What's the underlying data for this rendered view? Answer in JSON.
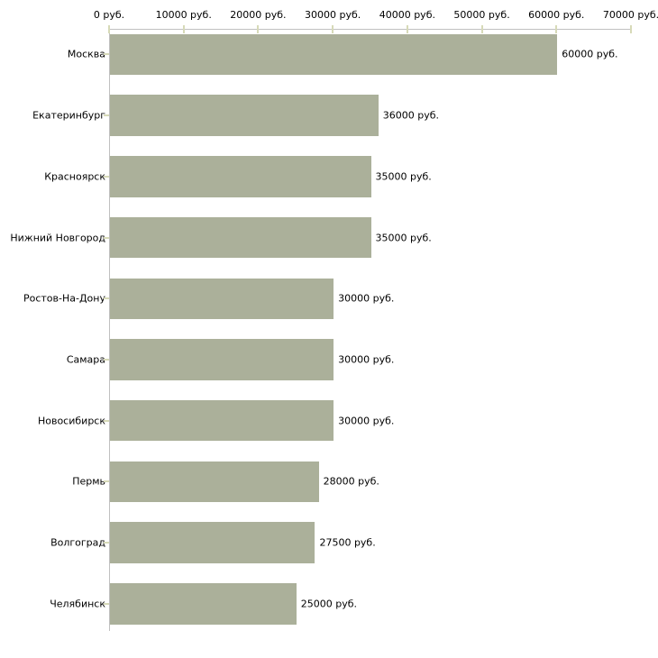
{
  "chart_data": {
    "type": "bar",
    "orientation": "horizontal",
    "title": "",
    "xlabel": "",
    "ylabel": "",
    "unit": "руб.",
    "grid": false,
    "legend": false,
    "xlim": [
      0,
      70000
    ],
    "x_ticks": [
      0,
      10000,
      20000,
      30000,
      40000,
      50000,
      60000,
      70000
    ],
    "x_tick_labels": [
      "0 руб.",
      "10000 руб.",
      "20000 руб.",
      "30000 руб.",
      "40000 руб.",
      "50000 руб.",
      "60000 руб.",
      "70000 руб."
    ],
    "categories": [
      "Москва",
      "Екатеринбург",
      "Красноярск",
      "Нижний Новгород",
      "Ростов-На-Дону",
      "Самара",
      "Новосибирск",
      "Пермь",
      "Волгоград",
      "Челябинск"
    ],
    "values": [
      60000,
      36000,
      35000,
      35000,
      30000,
      30000,
      30000,
      28000,
      27500,
      25000
    ],
    "value_labels": [
      "60000 руб.",
      "36000 руб.",
      "35000 руб.",
      "35000 руб.",
      "30000 руб.",
      "30000 руб.",
      "30000 руб.",
      "28000 руб.",
      "27500 руб.",
      "25000 руб."
    ],
    "colors": {
      "bar_fill": "#abb09a",
      "axis_line": "#c0c0c0",
      "tick_mark": "#d7dab8",
      "text": "#000000",
      "background": "#ffffff"
    }
  }
}
